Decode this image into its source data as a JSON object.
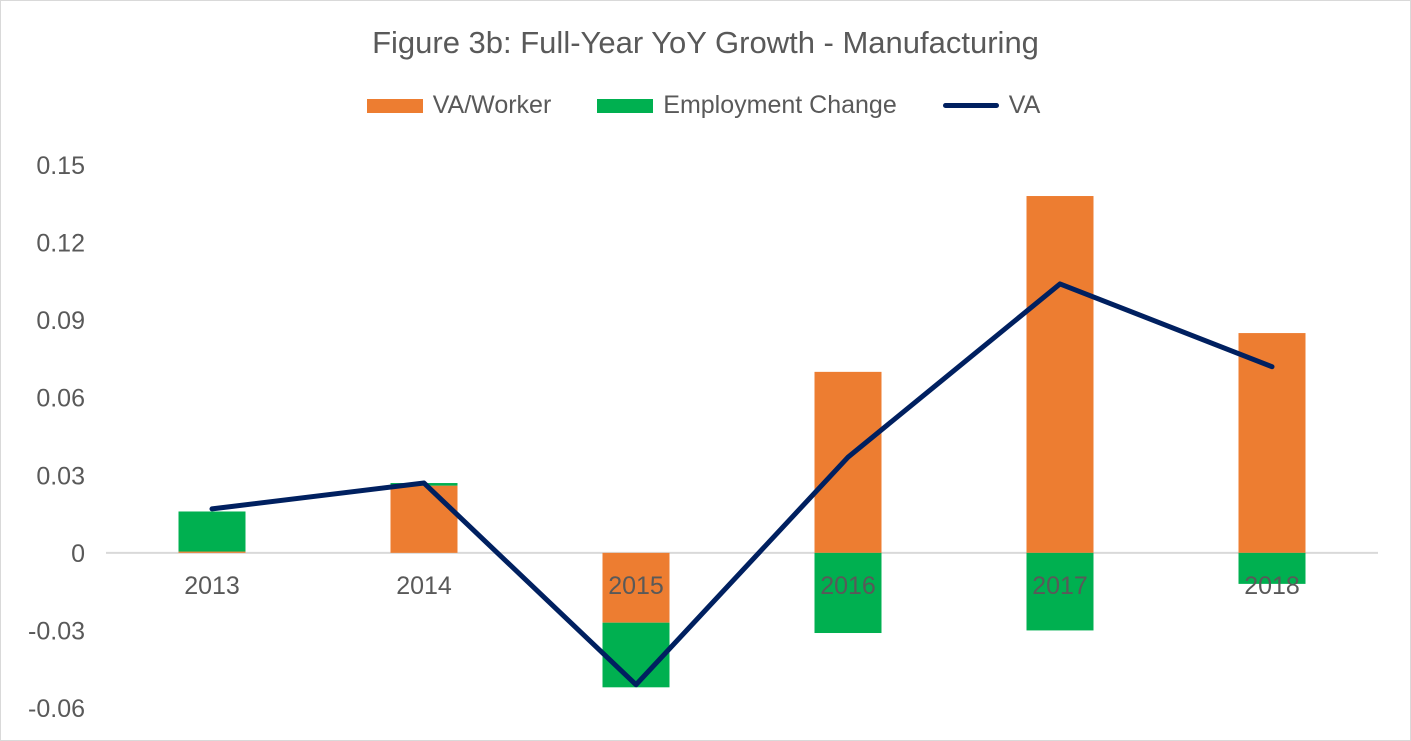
{
  "chart_data": {
    "type": "bar",
    "title": "Figure 3b: Full-Year YoY Growth - Manufacturing",
    "categories": [
      "2013",
      "2014",
      "2015",
      "2016",
      "2017",
      "2018"
    ],
    "series": [
      {
        "name": "VA/Worker",
        "type": "stacked-bar",
        "color": "#ED7D31",
        "values": [
          0.0005,
          0.026,
          -0.027,
          0.07,
          0.138,
          0.085
        ]
      },
      {
        "name": "Employment Change",
        "type": "stacked-bar",
        "color": "#00B050",
        "values": [
          0.0155,
          0.001,
          -0.025,
          -0.031,
          -0.03,
          -0.012
        ]
      },
      {
        "name": "VA",
        "type": "line",
        "color": "#002060",
        "values": [
          0.017,
          0.027,
          -0.051,
          0.037,
          0.104,
          0.072
        ]
      }
    ],
    "ylim": [
      -0.06,
      0.15
    ],
    "yticks": [
      0.15,
      0.12,
      0.09,
      0.06,
      0.03,
      0,
      -0.03,
      -0.06
    ],
    "ytick_labels": [
      "0.15",
      "0.12",
      "0.09",
      "0.06",
      "0.03",
      "0",
      "-0.03",
      "-0.06"
    ],
    "grid": false,
    "legend_position": "top"
  }
}
